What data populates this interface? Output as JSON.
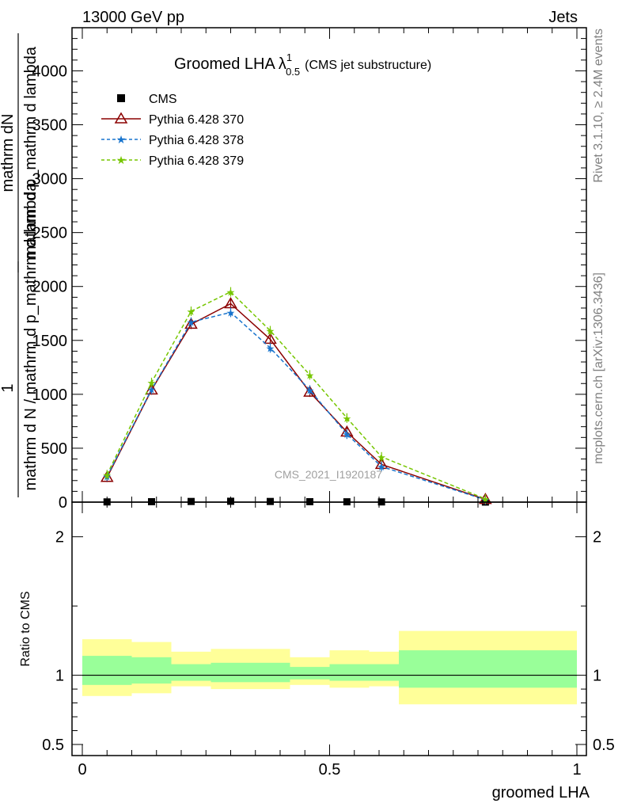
{
  "header": {
    "left": "13000 GeV pp",
    "right": "Jets"
  },
  "side_notes": {
    "rivet": "Rivet 3.1.10, ≥ 2.4M events",
    "mcplots": "mcplots.cern.ch [arXiv:1306.3436]"
  },
  "analysis_id": "CMS_2021_I1920187",
  "colors": {
    "cms": "#000000",
    "py370": "#8b0000",
    "py378": "#1874cd",
    "py379": "#76c600",
    "band_inner": "#99ff99",
    "band_outer": "#ffff99"
  },
  "chart_data": [
    {
      "type": "line",
      "title_main": "Groomed LHA",
      "title_symbol": "λ",
      "title_sup": "1",
      "title_sub": "0.5",
      "title_note": "(CMS jet substructure)",
      "ylabel": "1 / mathrm d N / mathrm d p_mathrm d lambda mathrm d^2N / mathrm d p mathrm d lambda",
      "ylabel_lines": [
        "mathrm dN",
        "mathrm d p_mathrm d lambda",
        "1",
        "mathrm d N / mathrm d p_mathrm d lambda"
      ],
      "xlim": [
        0,
        1
      ],
      "ylim": [
        0,
        4400
      ],
      "x_ticks": [
        0,
        0.5,
        1
      ],
      "y_ticks": [
        0,
        500,
        1000,
        1500,
        2000,
        2500,
        3000,
        3500,
        4000
      ],
      "y_tick_labels": [
        "0",
        "500",
        "1000",
        "1500",
        "2000",
        "2500",
        "3000",
        "3500",
        "4000"
      ],
      "legend_position": "top-left",
      "x": [
        0.05,
        0.14,
        0.22,
        0.3,
        0.38,
        0.46,
        0.535,
        0.605,
        0.815
      ],
      "series": [
        {
          "name": "CMS",
          "marker": "square",
          "color_key": "cms",
          "values": [
            2,
            4,
            6,
            8,
            6,
            4,
            3,
            2,
            0.5
          ]
        },
        {
          "name": "Pythia 6.428 370",
          "marker": "triangle",
          "color_key": "py370",
          "dash": "solid",
          "values": [
            230,
            1040,
            1650,
            1840,
            1510,
            1020,
            650,
            350,
            25
          ]
        },
        {
          "name": "Pythia 6.428 378",
          "marker": "star",
          "color_key": "py378",
          "dash": "dashed",
          "values": [
            240,
            1045,
            1670,
            1760,
            1430,
            1040,
            630,
            330,
            22
          ]
        },
        {
          "name": "Pythia 6.428 379",
          "marker": "star",
          "color_key": "py379",
          "dash": "dashed",
          "values": [
            255,
            1110,
            1770,
            1950,
            1590,
            1180,
            780,
            420,
            30
          ]
        }
      ]
    },
    {
      "type": "area",
      "ylabel": "Ratio to CMS",
      "xlabel": "groomed LHA",
      "xlim": [
        0,
        1
      ],
      "ylim": [
        0.42,
        2.25
      ],
      "x_ticks": [
        0,
        0.5,
        1
      ],
      "x_tick_labels": [
        "0",
        "0.5",
        "1"
      ],
      "y_ticks": [
        0.5,
        1,
        2
      ],
      "y_tick_labels": [
        "0.5",
        "1",
        "2"
      ],
      "reference_line": 1,
      "bins": [
        {
          "x_low": 0.0,
          "x_high": 0.1,
          "inner": [
            0.93,
            1.14
          ],
          "outer": [
            0.85,
            1.26
          ]
        },
        {
          "x_low": 0.1,
          "x_high": 0.18,
          "inner": [
            0.94,
            1.13
          ],
          "outer": [
            0.87,
            1.24
          ]
        },
        {
          "x_low": 0.18,
          "x_high": 0.26,
          "inner": [
            0.96,
            1.08
          ],
          "outer": [
            0.92,
            1.17
          ]
        },
        {
          "x_low": 0.26,
          "x_high": 0.34,
          "inner": [
            0.95,
            1.09
          ],
          "outer": [
            0.9,
            1.19
          ]
        },
        {
          "x_low": 0.34,
          "x_high": 0.42,
          "inner": [
            0.95,
            1.09
          ],
          "outer": [
            0.9,
            1.19
          ]
        },
        {
          "x_low": 0.42,
          "x_high": 0.5,
          "inner": [
            0.97,
            1.06
          ],
          "outer": [
            0.93,
            1.13
          ]
        },
        {
          "x_low": 0.5,
          "x_high": 0.58,
          "inner": [
            0.96,
            1.08
          ],
          "outer": [
            0.91,
            1.18
          ]
        },
        {
          "x_low": 0.58,
          "x_high": 0.64,
          "inner": [
            0.96,
            1.08
          ],
          "outer": [
            0.92,
            1.17
          ]
        },
        {
          "x_low": 0.64,
          "x_high": 1.0,
          "inner": [
            0.91,
            1.18
          ],
          "outer": [
            0.79,
            1.32
          ]
        }
      ]
    }
  ]
}
